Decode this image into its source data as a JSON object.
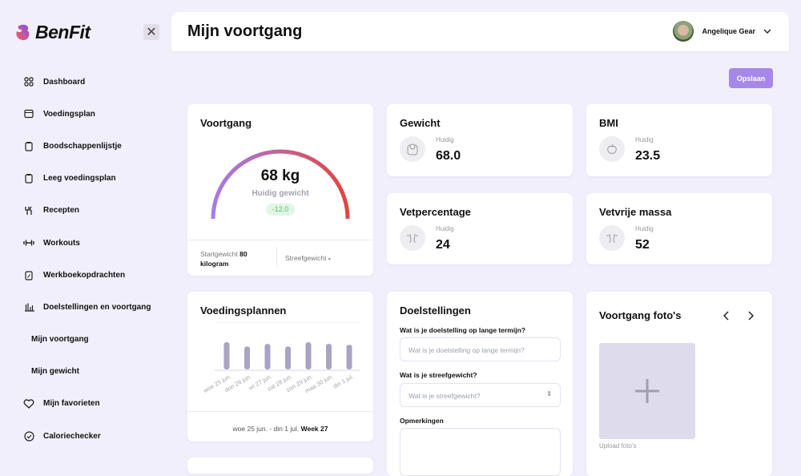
{
  "app": {
    "brand": "BenFit"
  },
  "sidebar": {
    "items": [
      {
        "label": "Dashboard",
        "icon": "grid-icon"
      },
      {
        "label": "Voedingsplan",
        "icon": "calendar-icon"
      },
      {
        "label": "Boodschappenlijstje",
        "icon": "clipboard-icon"
      },
      {
        "label": "Leeg voedingsplan",
        "icon": "clipboard-icon"
      },
      {
        "label": "Recepten",
        "icon": "utensils-icon"
      },
      {
        "label": "Workouts",
        "icon": "dumbbell-icon"
      },
      {
        "label": "Werkboekopdrachten",
        "icon": "clipboard-edit-icon"
      },
      {
        "label": "Doelstellingen en voortgang",
        "icon": "bar-chart-icon"
      },
      {
        "label": "Mijn voortgang"
      },
      {
        "label": "Mijn gewicht"
      },
      {
        "label": "Mijn favorieten",
        "icon": "heart-icon"
      },
      {
        "label": "Caloriechecker",
        "icon": "check-circle-icon"
      }
    ]
  },
  "header": {
    "title": "Mijn voortgang",
    "user": "Angelique Gear"
  },
  "toolbar": {
    "save_label": "Opslaan"
  },
  "progress": {
    "title": "Voortgang",
    "value": "68 kg",
    "label": "Huidig gewicht",
    "delta": "-12.0",
    "start_label": "Startgewicht",
    "start_value": "80 kilogram",
    "goal_label": "Streefgewicht",
    "goal_value": "-",
    "colors": {
      "start": "#a47de8",
      "end": "#e0463e"
    }
  },
  "metrics": [
    {
      "title": "Gewicht",
      "label": "Huidig",
      "value": "68.0",
      "icon": "scale-icon"
    },
    {
      "title": "BMI",
      "label": "Huidig",
      "value": "23.5",
      "icon": "apple-icon"
    },
    {
      "title": "Vetpercentage",
      "label": "Huidig",
      "value": "24",
      "icon": "body-icon"
    },
    {
      "title": "Vetvrije massa",
      "label": "Huidig",
      "value": "52",
      "icon": "body-icon"
    }
  ],
  "chart_data": {
    "type": "bar",
    "title": "Voedingsplannen",
    "categories": [
      "woe 25 jun.",
      "don 26 jun.",
      "vri 27 jun.",
      "zat 28 jun.",
      "zon 29 jun.",
      "maa 30 jun.",
      "din 1 jul."
    ],
    "values": [
      32,
      27,
      30,
      27,
      32,
      30,
      29
    ],
    "color": "#aaa3c4",
    "footer_range": "woe 25 jun. - din 1 jul.",
    "footer_week": "Week 27"
  },
  "goals": {
    "title": "Doelstellingen",
    "q1": "Wat is je doelstelling op lange termijn?",
    "q1_placeholder": "Wat is je doelstelling op lange termijn?",
    "q2": "Wat is je streefgewicht?",
    "q2_placeholder": "Wat is je streefgewicht?",
    "q3": "Opmerkingen"
  },
  "photos": {
    "title": "Voortgang foto's",
    "upload": "Upload foto's"
  }
}
